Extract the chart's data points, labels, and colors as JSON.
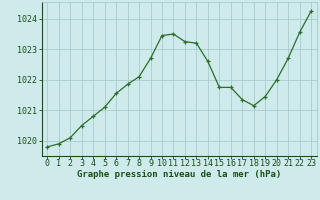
{
  "x": [
    0,
    1,
    2,
    3,
    4,
    5,
    6,
    7,
    8,
    9,
    10,
    11,
    12,
    13,
    14,
    15,
    16,
    17,
    18,
    19,
    20,
    21,
    22,
    23
  ],
  "y": [
    1019.8,
    1019.9,
    1020.1,
    1020.5,
    1020.8,
    1021.1,
    1021.55,
    1021.85,
    1022.1,
    1022.7,
    1023.45,
    1023.5,
    1023.25,
    1023.2,
    1022.6,
    1021.75,
    1021.75,
    1021.35,
    1021.15,
    1021.45,
    1022.0,
    1022.7,
    1023.55,
    1024.25
  ],
  "line_color": "#2d6e2d",
  "marker_color": "#2d6e2d",
  "bg_color": "#ceeaea",
  "grid_color": "#aacccc",
  "ylabel_ticks": [
    1020,
    1021,
    1022,
    1023,
    1024
  ],
  "xlabel": "Graphe pression niveau de la mer (hPa)",
  "xlim": [
    -0.5,
    23.5
  ],
  "ylim": [
    1019.5,
    1024.55
  ],
  "xlabel_fontsize": 6.5,
  "tick_fontsize": 6.0,
  "text_color": "#1a4e1a"
}
